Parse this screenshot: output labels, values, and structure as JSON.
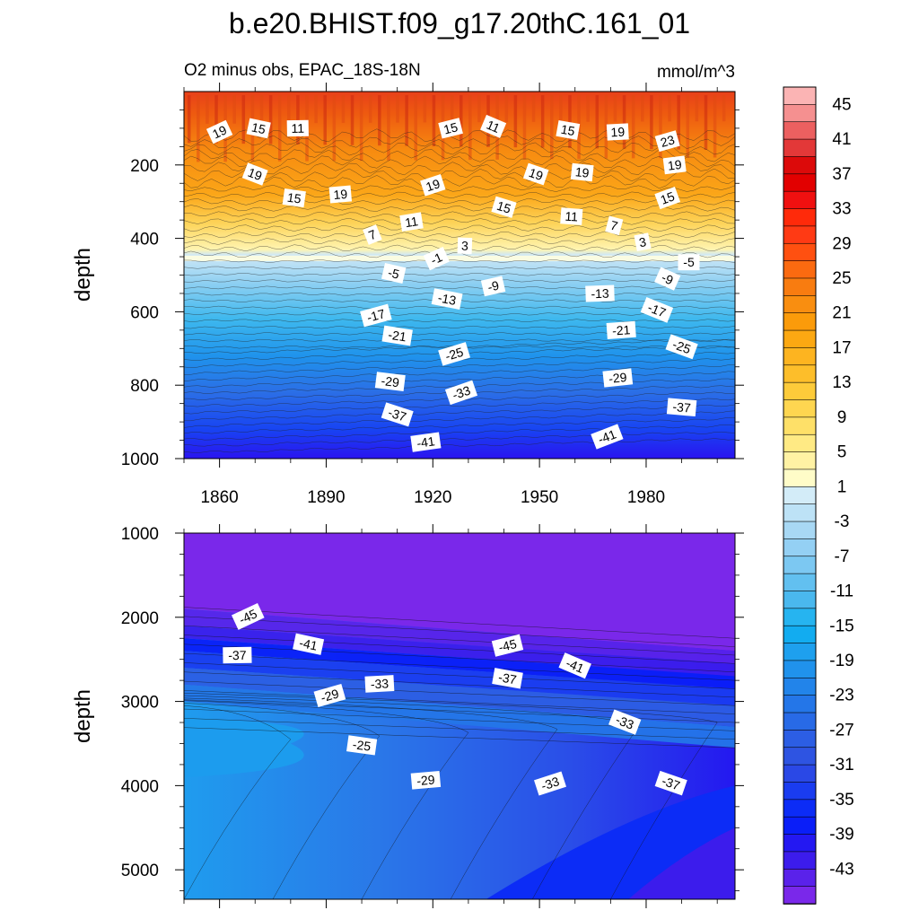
{
  "chart_data": {
    "type": "contour",
    "title": "b.e20.BHIST.f09_g17.20thC.161_01",
    "subtitle_left": "O2 minus obs, EPAC_18S-18N",
    "units": "mmol/m^3",
    "ylabel": "depth",
    "xlim": [
      1850,
      2005
    ],
    "xticks": [
      1860,
      1890,
      1920,
      1950,
      1980
    ],
    "colorbar": {
      "ticks": [
        45,
        41,
        37,
        33,
        29,
        25,
        21,
        17,
        13,
        9,
        5,
        1,
        -3,
        -7,
        -11,
        -15,
        -19,
        -23,
        -27,
        -31,
        -35,
        -39,
        -43
      ],
      "levels_step": 2,
      "min": -47,
      "max": 47
    },
    "panels": [
      {
        "name": "upper",
        "ylim": [
          0,
          1000
        ],
        "yticks": [
          200,
          400,
          600,
          800,
          1000
        ],
        "y_reversed": true,
        "contour_labels": [
          {
            "text": "19",
            "x": 1860,
            "y": 110
          },
          {
            "text": "15",
            "x": 1871,
            "y": 100
          },
          {
            "text": "11",
            "x": 1882,
            "y": 100
          },
          {
            "text": "15",
            "x": 1925,
            "y": 100
          },
          {
            "text": "11",
            "x": 1937,
            "y": 95
          },
          {
            "text": "15",
            "x": 1958,
            "y": 105
          },
          {
            "text": "19",
            "x": 1972,
            "y": 110
          },
          {
            "text": "23",
            "x": 1986,
            "y": 135
          },
          {
            "text": "19",
            "x": 1870,
            "y": 225
          },
          {
            "text": "15",
            "x": 1881,
            "y": 290
          },
          {
            "text": "19",
            "x": 1894,
            "y": 280
          },
          {
            "text": "19",
            "x": 1920,
            "y": 255
          },
          {
            "text": "19",
            "x": 1949,
            "y": 225
          },
          {
            "text": "19",
            "x": 1962,
            "y": 220
          },
          {
            "text": "19",
            "x": 1988,
            "y": 200
          },
          {
            "text": "15",
            "x": 1986,
            "y": 290
          },
          {
            "text": "15",
            "x": 1940,
            "y": 315
          },
          {
            "text": "11",
            "x": 1959,
            "y": 340
          },
          {
            "text": "11",
            "x": 1914,
            "y": 355
          },
          {
            "text": "7",
            "x": 1903,
            "y": 390
          },
          {
            "text": "7",
            "x": 1971,
            "y": 365
          },
          {
            "text": "3",
            "x": 1929,
            "y": 420
          },
          {
            "text": "3",
            "x": 1979,
            "y": 410
          },
          {
            "text": "-1",
            "x": 1921,
            "y": 455
          },
          {
            "text": "-5",
            "x": 1909,
            "y": 495
          },
          {
            "text": "-5",
            "x": 1992,
            "y": 465
          },
          {
            "text": "-9",
            "x": 1937,
            "y": 530
          },
          {
            "text": "-9",
            "x": 1986,
            "y": 510
          },
          {
            "text": "-13",
            "x": 1924,
            "y": 565
          },
          {
            "text": "-13",
            "x": 1967,
            "y": 550
          },
          {
            "text": "-17",
            "x": 1904,
            "y": 610
          },
          {
            "text": "-17",
            "x": 1983,
            "y": 595
          },
          {
            "text": "-21",
            "x": 1910,
            "y": 665
          },
          {
            "text": "-21",
            "x": 1973,
            "y": 650
          },
          {
            "text": "-25",
            "x": 1926,
            "y": 715
          },
          {
            "text": "-25",
            "x": 1990,
            "y": 695
          },
          {
            "text": "-29",
            "x": 1908,
            "y": 790
          },
          {
            "text": "-29",
            "x": 1972,
            "y": 780
          },
          {
            "text": "-33",
            "x": 1928,
            "y": 820
          },
          {
            "text": "-37",
            "x": 1910,
            "y": 880
          },
          {
            "text": "-37",
            "x": 1990,
            "y": 860
          },
          {
            "text": "-41",
            "x": 1918,
            "y": 955
          },
          {
            "text": "-41",
            "x": 1969,
            "y": 940
          }
        ]
      },
      {
        "name": "lower",
        "ylim": [
          1000,
          5350
        ],
        "yticks": [
          1000,
          2000,
          3000,
          4000,
          5000
        ],
        "y_reversed": true,
        "contour_labels": [
          {
            "text": "-45",
            "x": 1868,
            "y": 1990
          },
          {
            "text": "-41",
            "x": 1885,
            "y": 2320
          },
          {
            "text": "-37",
            "x": 1865,
            "y": 2450
          },
          {
            "text": "-45",
            "x": 1941,
            "y": 2335
          },
          {
            "text": "-41",
            "x": 1960,
            "y": 2575
          },
          {
            "text": "-37",
            "x": 1941,
            "y": 2725
          },
          {
            "text": "-33",
            "x": 1905,
            "y": 2790
          },
          {
            "text": "-29",
            "x": 1891,
            "y": 2930
          },
          {
            "text": "-33",
            "x": 1974,
            "y": 3245
          },
          {
            "text": "-25",
            "x": 1900,
            "y": 3520
          },
          {
            "text": "-29",
            "x": 1918,
            "y": 3935
          },
          {
            "text": "-33",
            "x": 1953,
            "y": 3975
          },
          {
            "text": "-37",
            "x": 1987,
            "y": 3970
          }
        ]
      }
    ]
  }
}
